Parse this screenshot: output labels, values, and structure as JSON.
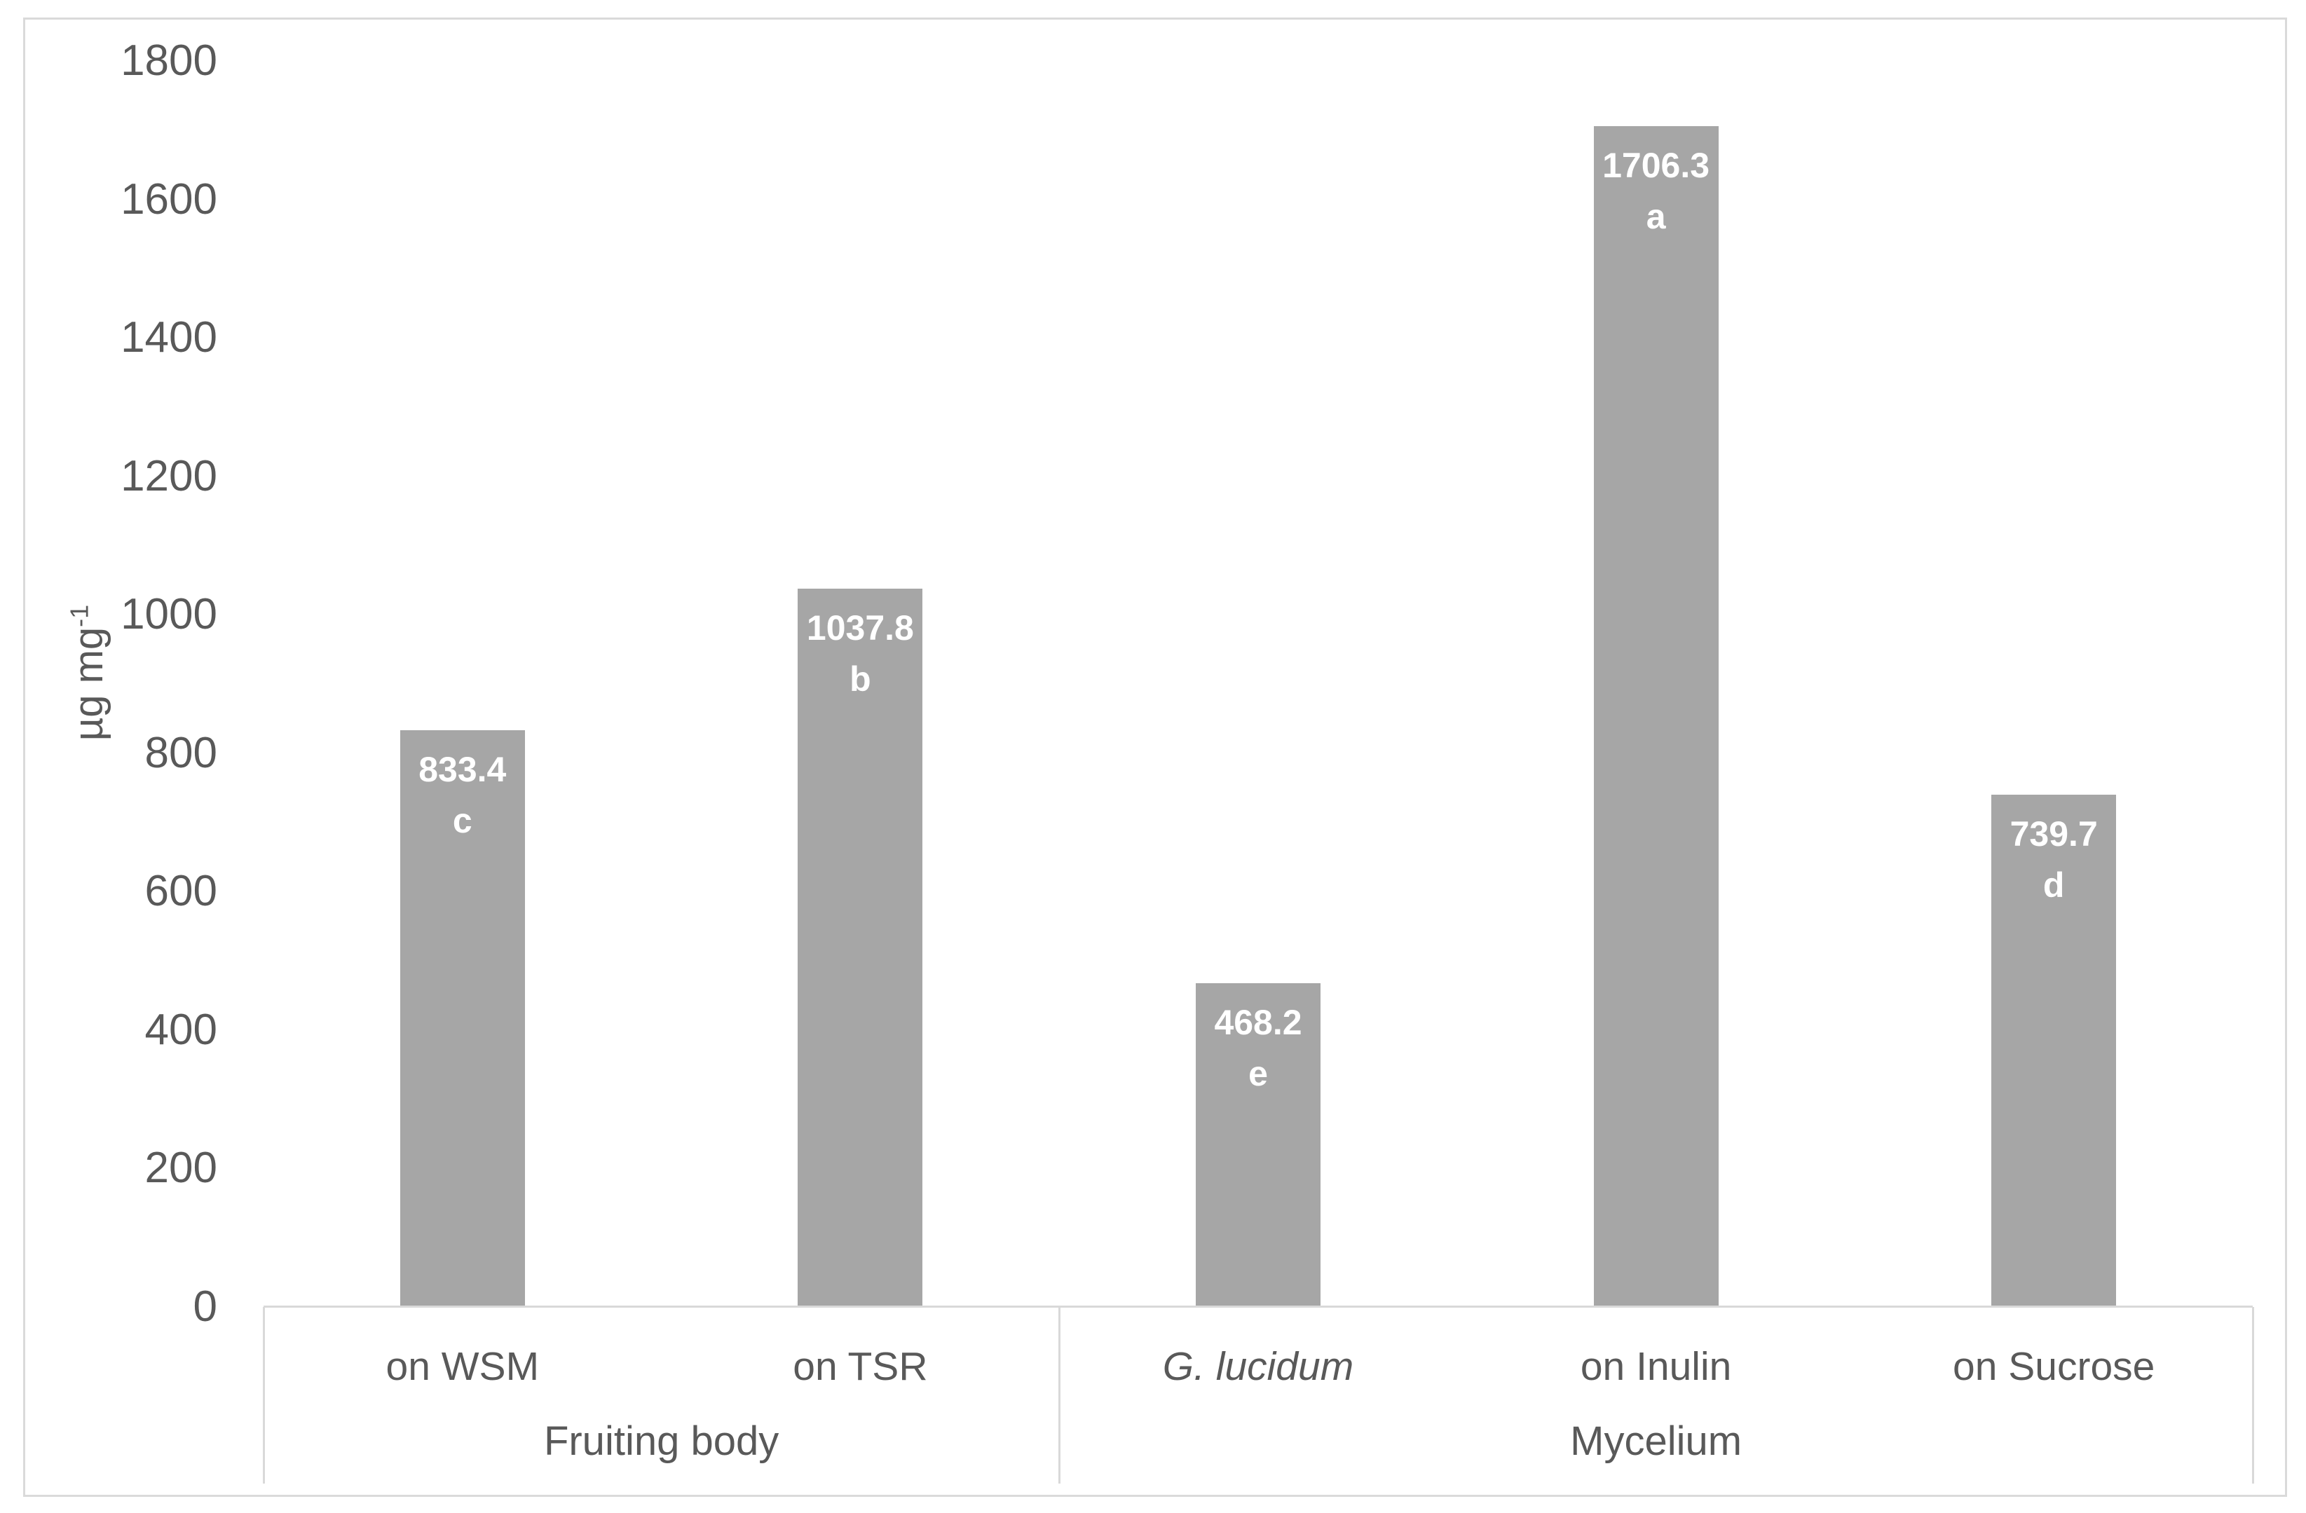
{
  "chart_data": {
    "type": "bar",
    "title": "",
    "ylabel_base": "µg mg",
    "ylabel_exponent": "-1",
    "ylim": [
      0,
      1800
    ],
    "ytick_step": 200,
    "yticks": [
      0,
      200,
      400,
      600,
      800,
      1000,
      1200,
      1400,
      1600,
      1800
    ],
    "grid": false,
    "legend": "none",
    "categories": [
      "on WSM",
      "on TSR",
      "G. lucidum",
      "on Inulin",
      "on Sucrose"
    ],
    "values": [
      833.4,
      1037.8,
      468.2,
      1706.3,
      739.7
    ],
    "significance_letters": [
      "c",
      "b",
      "e",
      "a",
      "d"
    ],
    "groups": [
      {
        "label": "Fruiting body",
        "categories": [
          {
            "label": "on WSM",
            "italic": false,
            "value": 833.4,
            "letter": "c"
          },
          {
            "label": "on TSR",
            "italic": false,
            "value": 1037.8,
            "letter": "b"
          }
        ]
      },
      {
        "label": "Mycelium",
        "categories": [
          {
            "label": "G. lucidum",
            "italic": true,
            "value": 468.2,
            "letter": "e"
          },
          {
            "label": "on Inulin",
            "italic": false,
            "value": 1706.3,
            "letter": "a"
          },
          {
            "label": "on Sucrose",
            "italic": false,
            "value": 739.7,
            "letter": "d"
          }
        ]
      }
    ],
    "colors": {
      "bar_fill": "#a6a6a6",
      "bar_label_text": "#ffffff",
      "axis_text": "#595959",
      "axis_line": "#d9d9d9",
      "frame_border": "#dadada",
      "background": "#ffffff"
    }
  }
}
